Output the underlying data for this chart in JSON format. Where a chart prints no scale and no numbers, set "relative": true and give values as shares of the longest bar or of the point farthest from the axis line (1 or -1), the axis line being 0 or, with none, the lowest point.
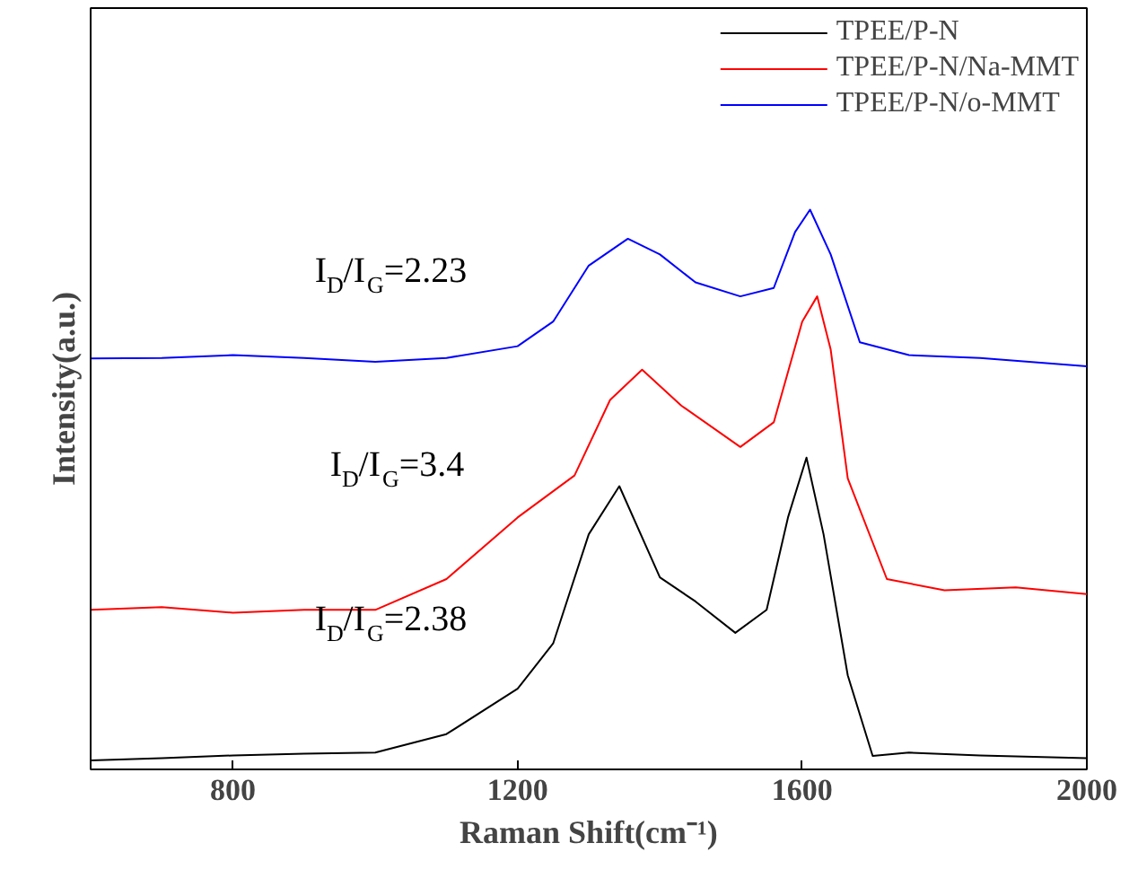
{
  "chart_data": {
    "type": "line",
    "relative": true,
    "xlabel": "Raman Shift(cm⁻¹)",
    "ylabel": "Intensity(a.u.)",
    "xlim": [
      600,
      2000
    ],
    "xticks": [
      800,
      1200,
      1600,
      2000
    ],
    "tick_labels": "x",
    "grid": false,
    "legend": "top right",
    "series": [
      {
        "name": "TPEE/P-N",
        "color": "#000000",
        "x": [
          600,
          700,
          800,
          900,
          1000,
          1100,
          1200,
          1250,
          1300,
          1343,
          1400,
          1450,
          1506,
          1550,
          1580,
          1606,
          1630,
          1664,
          1699,
          1750,
          1850,
          2000
        ],
        "values": [
          0.016,
          0.02,
          0.025,
          0.028,
          0.03,
          0.063,
          0.144,
          0.225,
          0.42,
          0.506,
          0.343,
          0.3,
          0.244,
          0.285,
          0.45,
          0.557,
          0.42,
          0.168,
          0.024,
          0.03,
          0.025,
          0.02
        ]
      },
      {
        "name": "TPEE/P-N/Na-MMT",
        "color": "#ff0000",
        "x": [
          600,
          700,
          800,
          900,
          1000,
          1100,
          1200,
          1280,
          1330,
          1375,
          1430,
          1513,
          1560,
          1600,
          1621,
          1640,
          1664,
          1719,
          1800,
          1900,
          2000
        ],
        "values": [
          0.285,
          0.29,
          0.28,
          0.285,
          0.285,
          0.34,
          0.45,
          0.525,
          0.66,
          0.714,
          0.65,
          0.576,
          0.62,
          0.8,
          0.845,
          0.75,
          0.52,
          0.34,
          0.32,
          0.325,
          0.313
        ]
      },
      {
        "name": "TPEE/P-N/o-MMT",
        "color": "#0000ff",
        "x": [
          600,
          700,
          800,
          900,
          1000,
          1100,
          1200,
          1250,
          1300,
          1355,
          1400,
          1450,
          1513,
          1560,
          1590,
          1611,
          1640,
          1681,
          1750,
          1850,
          2000
        ],
        "values": [
          0.734,
          0.735,
          0.74,
          0.735,
          0.728,
          0.735,
          0.756,
          0.8,
          0.9,
          0.948,
          0.92,
          0.87,
          0.845,
          0.86,
          0.96,
          1.0,
          0.92,
          0.763,
          0.74,
          0.735,
          0.72
        ]
      }
    ],
    "annotations": [
      "I$_{D}$/I$_{G}$=2.23",
      "I$_{D}$/I$_{G}$=3.4",
      "I$_{D}$/I$_{G}$=2.38"
    ]
  }
}
